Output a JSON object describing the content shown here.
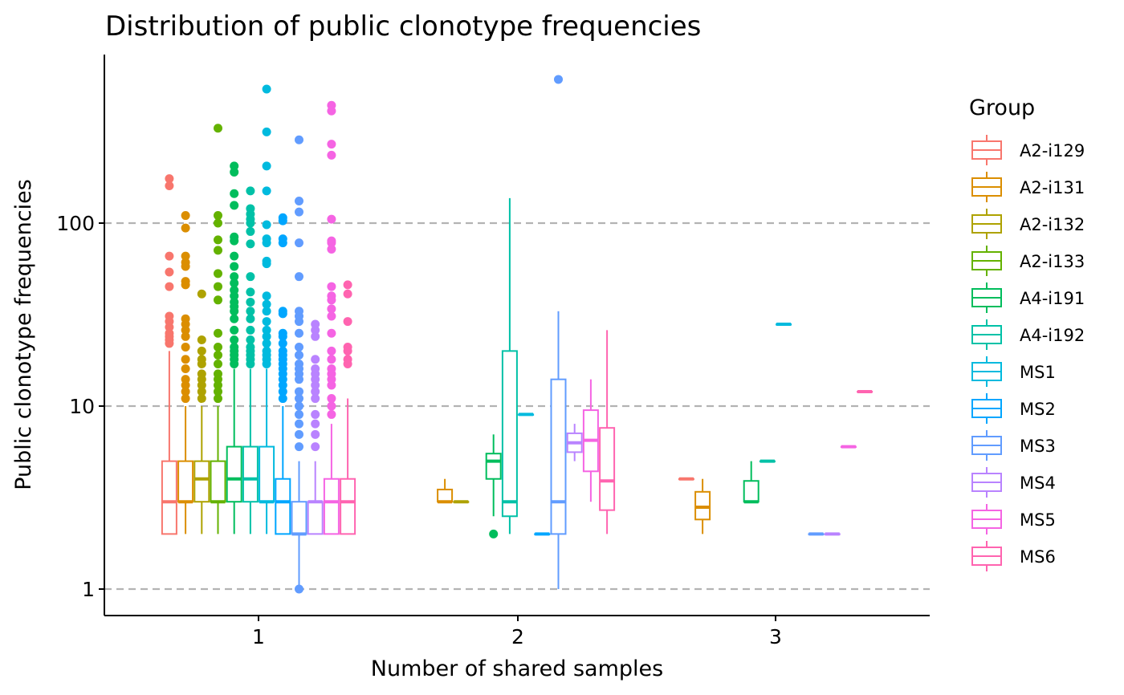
{
  "chart_data": {
    "type": "boxplot",
    "title": "Distribution of public clonotype frequencies",
    "xlabel": "Number of shared samples",
    "ylabel": "Public clonotype frequencies",
    "y_scale": "log10",
    "ylim": [
      0.7,
      800
    ],
    "y_ticks": [
      1,
      10,
      100
    ],
    "y_tick_labels": [
      "1",
      "10",
      "100"
    ],
    "categories": [
      "1",
      "2",
      "3"
    ],
    "grid": "horizontal major dashed",
    "legend": {
      "title": "Group",
      "position": "right"
    },
    "groups": [
      {
        "name": "A2-i129",
        "color": "#F8766D",
        "boxes": {
          "1": {
            "min": 2,
            "q1": 2,
            "median": 3,
            "q3": 5,
            "max": 20,
            "outliers": [
              22,
              23,
              24,
              25,
              27,
              29,
              31,
              45,
              54,
              66,
              160,
              175
            ]
          },
          "3": {
            "min": 4,
            "q1": 4,
            "median": 4,
            "q3": 4,
            "max": 4,
            "outliers": []
          }
        }
      },
      {
        "name": "A2-i131",
        "color": "#DB8E00",
        "boxes": {
          "1": {
            "min": 2,
            "q1": 3,
            "median": 3,
            "q3": 5,
            "max": 10,
            "outliers": [
              11,
              12,
              13,
              14,
              16,
              18,
              21,
              24,
              26,
              28,
              30,
              46,
              48,
              58,
              61,
              66,
              94,
              110
            ]
          },
          "2": {
            "min": 3,
            "q1": 3,
            "median": 3,
            "q3": 3.5,
            "max": 4,
            "outliers": []
          },
          "3": {
            "min": 2,
            "q1": 2.4,
            "median": 2.8,
            "q3": 3.4,
            "max": 4,
            "outliers": []
          }
        }
      },
      {
        "name": "A2-i132",
        "color": "#AEA200",
        "boxes": {
          "1": {
            "min": 2,
            "q1": 3,
            "median": 4,
            "q3": 5,
            "max": 10,
            "outliers": [
              11,
              12,
              13,
              14,
              15,
              17,
              18,
              20,
              23,
              41
            ]
          },
          "2": {
            "min": 3,
            "q1": 3,
            "median": 3,
            "q3": 3,
            "max": 3,
            "outliers": []
          }
        }
      },
      {
        "name": "A2-i133",
        "color": "#64B200",
        "boxes": {
          "1": {
            "min": 2,
            "q1": 3,
            "median": 3,
            "q3": 5,
            "max": 10,
            "outliers": [
              11,
              12,
              13,
              14,
              15,
              17,
              19,
              21,
              25,
              38,
              45,
              53,
              71,
              81,
              100,
              110,
              330
            ]
          }
        }
      },
      {
        "name": "A4-i191",
        "color": "#00BD5C",
        "boxes": {
          "1": {
            "min": 2,
            "q1": 3,
            "median": 4,
            "q3": 6,
            "max": 16,
            "outliers": [
              17,
              18,
              19,
              20,
              21,
              23,
              26,
              30,
              33,
              35,
              37,
              40,
              43,
              47,
              51,
              58,
              66,
              80,
              84,
              125,
              145,
              190,
              205
            ]
          },
          "2": {
            "min": 2.5,
            "q1": 4,
            "median": 5,
            "q3": 5.5,
            "max": 7,
            "outliers": [
              2
            ]
          },
          "3": {
            "min": 3,
            "q1": 3,
            "median": 3,
            "q3": 3.9,
            "max": 5,
            "outliers": []
          }
        }
      },
      {
        "name": "A4-i192",
        "color": "#00C1A7",
        "boxes": {
          "1": {
            "min": 2,
            "q1": 3,
            "median": 4,
            "q3": 6,
            "max": 16,
            "outliers": [
              17,
              18,
              19,
              20,
              21,
              23,
              26,
              30,
              33,
              37,
              42,
              51,
              77,
              90,
              100,
              105,
              112,
              120,
              150
            ]
          },
          "2": {
            "min": 2,
            "q1": 2.5,
            "median": 3,
            "q3": 20,
            "max": 137,
            "outliers": []
          },
          "3": {
            "min": 5,
            "q1": 5,
            "median": 5,
            "q3": 5,
            "max": 5,
            "outliers": []
          }
        }
      },
      {
        "name": "MS1",
        "color": "#00BADE",
        "boxes": {
          "1": {
            "min": 2,
            "q1": 3,
            "median": 3,
            "q3": 6,
            "max": 16,
            "outliers": [
              17,
              18,
              19,
              20,
              22,
              24,
              26,
              29,
              33,
              36,
              40,
              60,
              62,
              78,
              82,
              98,
              150,
              205,
              315,
              540
            ]
          },
          "2": {
            "min": 9,
            "q1": 9,
            "median": 9,
            "q3": 9,
            "max": 9,
            "outliers": []
          },
          "3": {
            "min": 28,
            "q1": 28,
            "median": 28,
            "q3": 28,
            "max": 28,
            "outliers": []
          }
        }
      },
      {
        "name": "MS2",
        "color": "#00A6FF",
        "boxes": {
          "1": {
            "min": 2,
            "q1": 2,
            "median": 3,
            "q3": 4,
            "max": 10,
            "outliers": [
              11,
              12,
              13,
              14,
              15,
              16,
              17,
              18,
              19,
              20,
              22,
              24,
              25,
              32,
              33,
              78,
              82,
              103,
              107
            ]
          },
          "2": {
            "min": 2,
            "q1": 2,
            "median": 2,
            "q3": 2,
            "max": 2,
            "outliers": []
          }
        }
      },
      {
        "name": "MS3",
        "color": "#619CFF",
        "boxes": {
          "1": {
            "min": 1,
            "q1": 2,
            "median": 2,
            "q3": 3,
            "max": 5,
            "outliers": [
              1,
              6,
              7,
              8,
              9,
              10,
              11,
              12,
              14,
              15,
              16,
              17,
              19,
              21,
              25,
              29,
              31,
              33,
              51,
              78,
              115,
              132,
              285
            ]
          },
          "2": {
            "min": 1,
            "q1": 2,
            "median": 3,
            "q3": 14,
            "max": 33,
            "outliers": [
              610
            ]
          },
          "3": {
            "min": 2,
            "q1": 2,
            "median": 2,
            "q3": 2,
            "max": 2,
            "outliers": []
          }
        }
      },
      {
        "name": "MS4",
        "color": "#B983FF",
        "boxes": {
          "1": {
            "min": 2,
            "q1": 2,
            "median": 3,
            "q3": 3,
            "max": 5,
            "outliers": [
              6,
              7,
              8,
              9,
              11,
              12,
              13,
              14,
              15,
              16,
              18,
              24,
              26,
              28
            ]
          },
          "2": {
            "min": 5,
            "q1": 5.6,
            "median": 6.3,
            "q3": 7.1,
            "max": 8,
            "outliers": []
          },
          "3": {
            "min": 2,
            "q1": 2,
            "median": 2,
            "q3": 2,
            "max": 2,
            "outliers": []
          }
        }
      },
      {
        "name": "MS5",
        "color": "#F564E3",
        "boxes": {
          "1": {
            "min": 2,
            "q1": 2,
            "median": 3,
            "q3": 4,
            "max": 8,
            "outliers": [
              9,
              10,
              11,
              13,
              14,
              15,
              16,
              18,
              20,
              25,
              31,
              34,
              38,
              40,
              45,
              72,
              78,
              80,
              105,
              235,
              270,
              410,
              440
            ]
          },
          "2": {
            "min": 3,
            "q1": 4.4,
            "median": 6.5,
            "q3": 9.5,
            "max": 14,
            "outliers": []
          },
          "3": {
            "min": 6,
            "q1": 6,
            "median": 6,
            "q3": 6,
            "max": 6,
            "outliers": []
          }
        }
      },
      {
        "name": "MS6",
        "color": "#FF64B0",
        "boxes": {
          "1": {
            "min": 2,
            "q1": 2,
            "median": 3,
            "q3": 4,
            "max": 11,
            "outliers": [
              17,
              18,
              20,
              21,
              29,
              41,
              46
            ]
          },
          "2": {
            "min": 2,
            "q1": 2.7,
            "median": 3.9,
            "q3": 7.6,
            "max": 26,
            "outliers": []
          },
          "3": {
            "min": 12,
            "q1": 12,
            "median": 12,
            "q3": 12,
            "max": 12,
            "outliers": []
          }
        }
      }
    ]
  }
}
